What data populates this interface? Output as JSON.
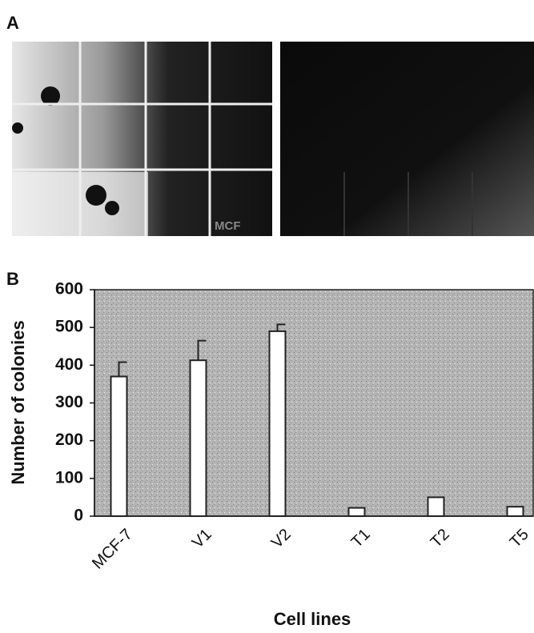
{
  "panel_a": {
    "label": "A",
    "image_text": "MCF"
  },
  "chart_data": {
    "type": "bar",
    "panel_label": "B",
    "y_label": "Number of colonies",
    "x_label": "Cell lines",
    "categories": [
      "MCF-7",
      "V1",
      "V2",
      "T1",
      "T2",
      "T5"
    ],
    "values": [
      370,
      413,
      490,
      22,
      50,
      25
    ],
    "errors": [
      38,
      52,
      18,
      null,
      null,
      null
    ],
    "color": "#ffffff",
    "ylim": [
      0,
      600
    ],
    "yticks": [
      0,
      100,
      200,
      300,
      400,
      500,
      600
    ],
    "grid": false
  }
}
